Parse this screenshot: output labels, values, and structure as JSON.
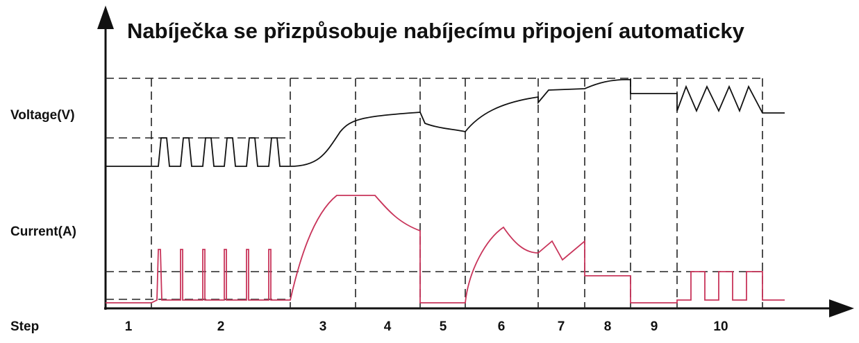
{
  "title": "Nabíječka se přizpůsobuje nabíjecímu připojení automaticky",
  "labels": {
    "voltage": "Voltage(V)",
    "current": "Current(A)",
    "step": "Step"
  },
  "steps": [
    "1",
    "2",
    "3",
    "4",
    "5",
    "6",
    "7",
    "8",
    "9",
    "10"
  ]
}
